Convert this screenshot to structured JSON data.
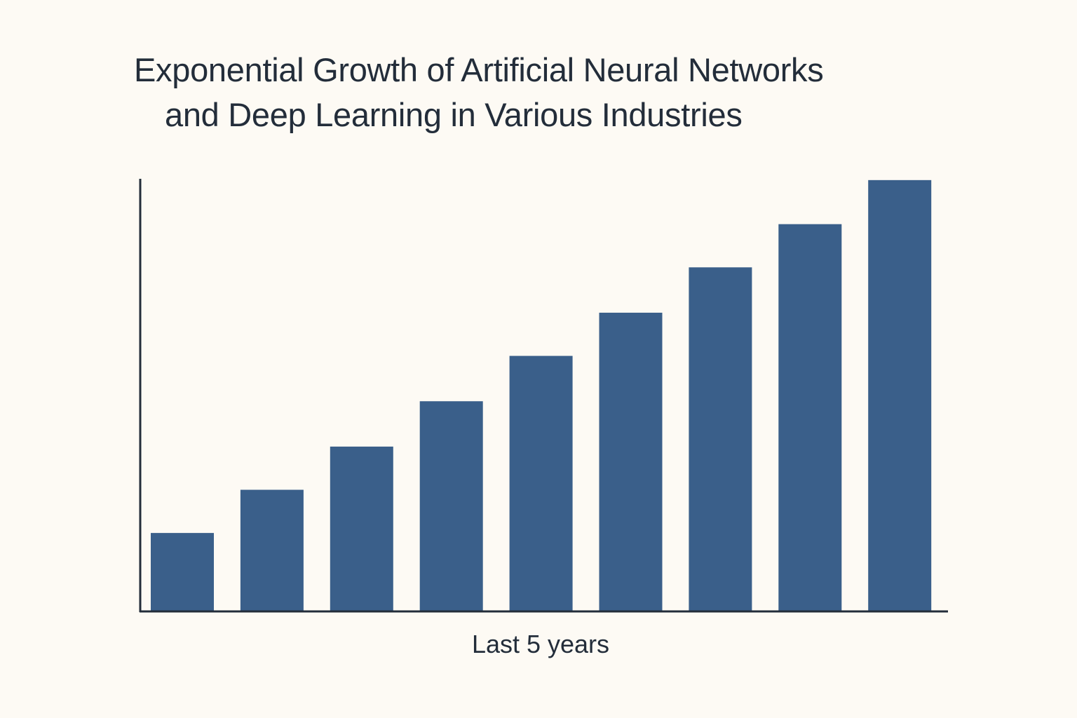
{
  "chart_data": {
    "type": "bar",
    "title": [
      "Exponential Growth of Artificial Neural Networks",
      "and Deep Learning in Various Industries"
    ],
    "xlabel": "Last 5 years",
    "ylabel": "",
    "values": [
      18,
      28,
      38,
      48.5,
      59,
      69,
      79.5,
      89.5,
      99.7
    ],
    "ylim": [
      0,
      100
    ],
    "grid": false,
    "legend": "none",
    "bar_color": "#3a5f8a",
    "axis_color": "#232d3a",
    "background": "#fdfaf4"
  }
}
